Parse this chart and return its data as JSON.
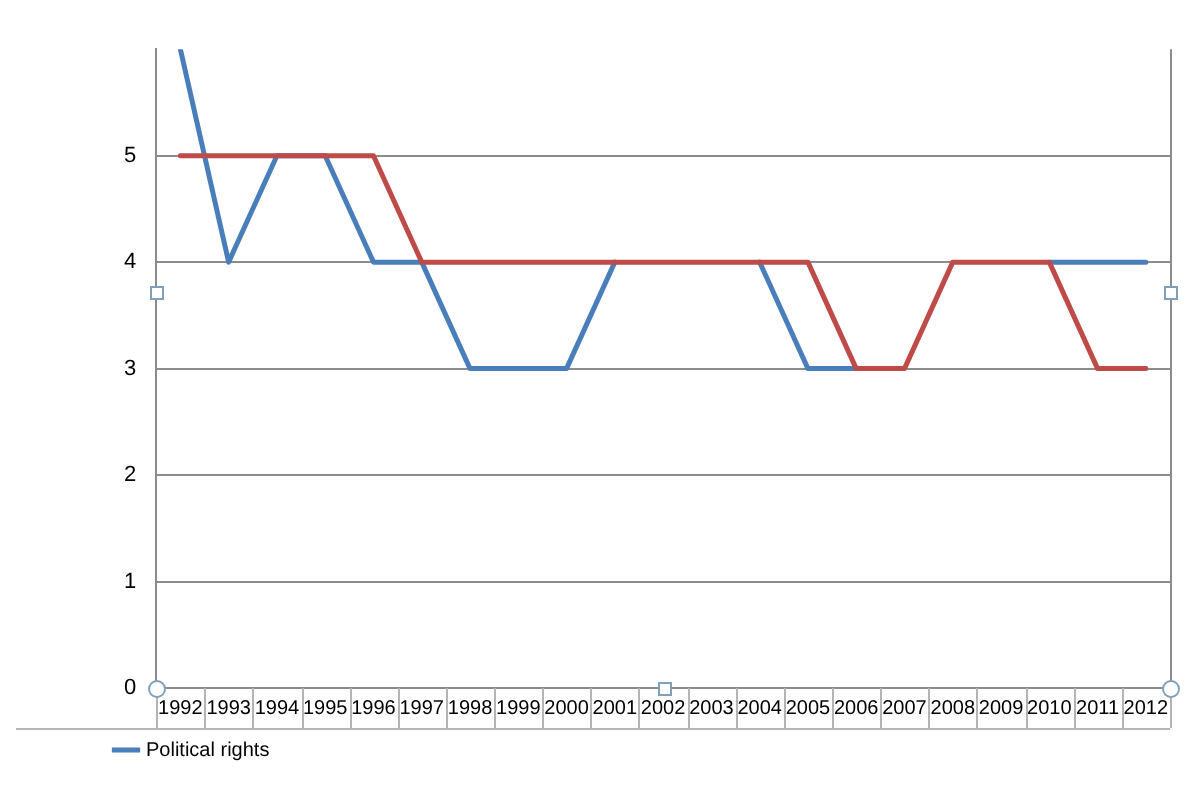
{
  "chart_data": {
    "type": "line",
    "categories": [
      "1992",
      "1993",
      "1994",
      "1995",
      "1996",
      "1997",
      "1998",
      "1999",
      "2000",
      "2001",
      "2002",
      "2003",
      "2004",
      "2005",
      "2006",
      "2007",
      "2008",
      "2009",
      "2010",
      "2011",
      "2012"
    ],
    "series": [
      {
        "name": "Political rights",
        "color": "#4a7ebb",
        "values": [
          6,
          4,
          5,
          5,
          4,
          4,
          3,
          3,
          3,
          4,
          null,
          null,
          4,
          3,
          3,
          null,
          null,
          null,
          4,
          4,
          4
        ]
      },
      {
        "color": "#be4b48",
        "values": [
          5,
          5,
          5,
          5,
          5,
          4,
          4,
          4,
          4,
          4,
          4,
          4,
          4,
          4,
          3,
          3,
          4,
          4,
          4,
          3,
          3
        ]
      }
    ],
    "ylim": [
      0,
      6
    ],
    "yticks": [
      0,
      1,
      2,
      3,
      4,
      5
    ],
    "grid": "y",
    "legend": "bottom left",
    "marker": "none",
    "line_style": "solid"
  }
}
